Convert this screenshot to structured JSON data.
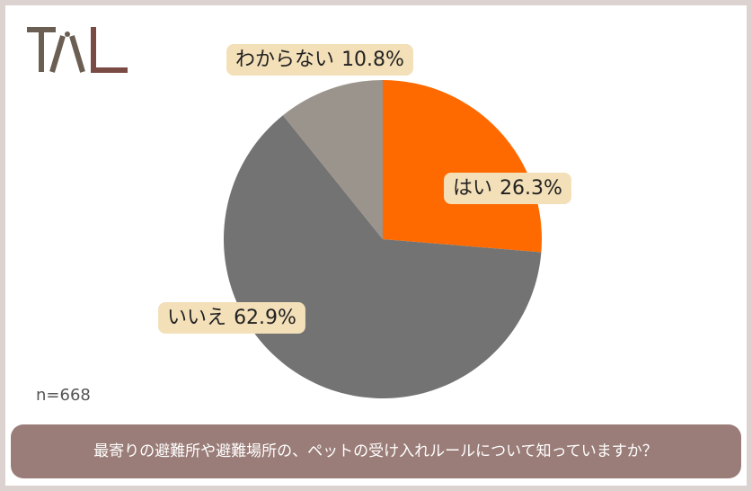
{
  "chart_data": {
    "type": "pie",
    "title": "最寄りの避難所や避難場所の、ペットの受け入れルールについて知っていますか？",
    "note": "n=668",
    "categories": [
      "はい",
      "いいえ",
      "わからない"
    ],
    "values": [
      26.3,
      62.9,
      10.8
    ],
    "value_labels": [
      "26.3%",
      "62.9%",
      "10.8%"
    ],
    "colors": [
      "#ff6a00",
      "#737373",
      "#9b948c"
    ]
  }
}
